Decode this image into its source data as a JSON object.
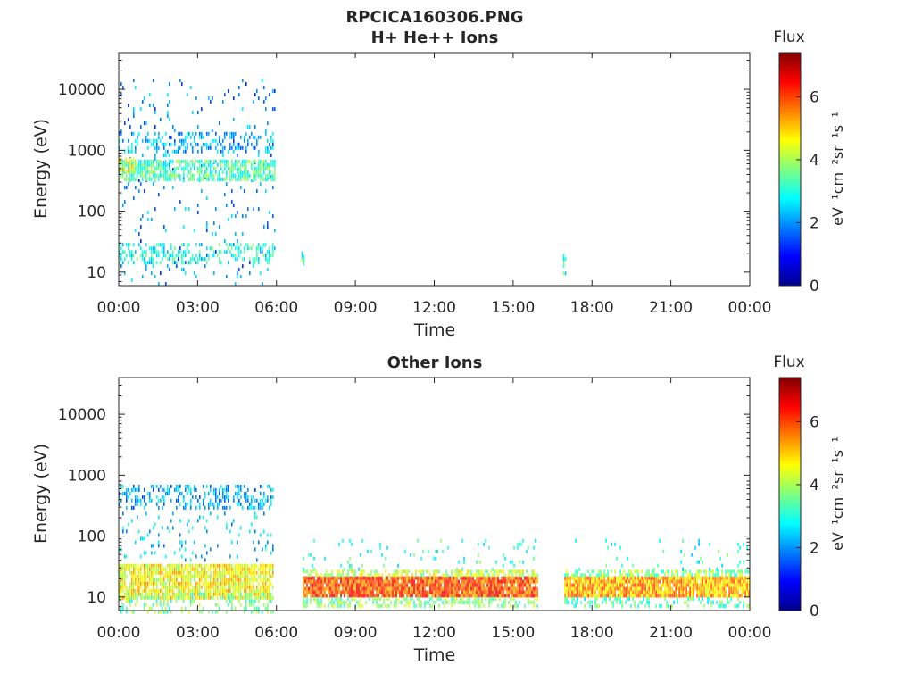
{
  "chart_data": {
    "type": "heatmap",
    "figure_title": "RPCICA160306.PNG",
    "colormap": "jet",
    "panels": [
      {
        "title": "H+ He++ Ions",
        "xlabel": "Time",
        "ylabel": "Energy (eV)",
        "x_ticks": [
          "00:00",
          "03:00",
          "06:00",
          "09:00",
          "12:00",
          "15:00",
          "18:00",
          "21:00",
          "00:00"
        ],
        "xlim_hours": [
          0,
          24
        ],
        "y_scale": "log",
        "y_ticks": [
          "10",
          "100",
          "1000",
          "10000"
        ],
        "ylim": [
          6,
          40000
        ],
        "colorbar": {
          "title": "Flux",
          "label": "eV⁻¹cm⁻²sr⁻¹s⁻¹",
          "ticks": [
            "0",
            "2",
            "4",
            "6"
          ],
          "range": [
            0,
            7.4
          ]
        },
        "regions": [
          {
            "t0": 0.0,
            "t1": 5.95,
            "e0": 6,
            "e1": 15000,
            "flux": 2.0,
            "density": 0.05
          },
          {
            "t0": 0.0,
            "t1": 5.95,
            "e0": 350,
            "e1": 700,
            "flux": 3.3,
            "density": 0.7
          },
          {
            "t0": 0.0,
            "t1": 5.95,
            "e0": 900,
            "e1": 2000,
            "flux": 2.3,
            "density": 0.28
          },
          {
            "t0": 0.0,
            "t1": 5.95,
            "e0": 15,
            "e1": 30,
            "flux": 3.0,
            "density": 0.4
          },
          {
            "t0": 0.0,
            "t1": 0.6,
            "e0": 500,
            "e1": 750,
            "flux": 4.5,
            "density": 0.6
          },
          {
            "t0": 6.95,
            "t1": 7.05,
            "e0": 14,
            "e1": 22,
            "flux": 3.2,
            "density": 0.8
          },
          {
            "t0": 16.9,
            "t1": 17.0,
            "e0": 10,
            "e1": 20,
            "flux": 3.2,
            "density": 0.8
          }
        ]
      },
      {
        "title": "Other Ions",
        "xlabel": "Time",
        "ylabel": "Energy (eV)",
        "x_ticks": [
          "00:00",
          "03:00",
          "06:00",
          "09:00",
          "12:00",
          "15:00",
          "18:00",
          "21:00",
          "00:00"
        ],
        "xlim_hours": [
          0,
          24
        ],
        "y_scale": "log",
        "y_ticks": [
          "10",
          "100",
          "1000",
          "10000"
        ],
        "ylim": [
          6,
          40000
        ],
        "colorbar": {
          "title": "Flux",
          "label": "eV⁻¹cm⁻²sr⁻¹s⁻¹",
          "ticks": [
            "0",
            "2",
            "4",
            "6"
          ],
          "range": [
            0,
            7.4
          ]
        },
        "regions": [
          {
            "t0": 0.0,
            "t1": 5.85,
            "e0": 10,
            "e1": 35,
            "flux": 4.6,
            "density": 0.85
          },
          {
            "t0": 0.0,
            "t1": 5.85,
            "e0": 6,
            "e1": 12,
            "flux": 3.6,
            "density": 0.3
          },
          {
            "t0": 0.0,
            "t1": 5.85,
            "e0": 300,
            "e1": 700,
            "flux": 2.2,
            "density": 0.35
          },
          {
            "t0": 0.0,
            "t1": 5.85,
            "e0": 40,
            "e1": 250,
            "flux": 2.5,
            "density": 0.08
          },
          {
            "t0": 7.0,
            "t1": 15.9,
            "e0": 10,
            "e1": 22,
            "flux": 5.9,
            "density": 0.95
          },
          {
            "t0": 7.0,
            "t1": 15.9,
            "e0": 22,
            "e1": 28,
            "flux": 4.2,
            "density": 0.6
          },
          {
            "t0": 7.0,
            "t1": 15.9,
            "e0": 7,
            "e1": 10,
            "flux": 3.8,
            "density": 0.5
          },
          {
            "t0": 7.0,
            "t1": 15.9,
            "e0": 30,
            "e1": 90,
            "flux": 3.2,
            "density": 0.07
          },
          {
            "t0": 16.95,
            "t1": 24.0,
            "e0": 10,
            "e1": 22,
            "flux": 5.2,
            "density": 0.95
          },
          {
            "t0": 16.95,
            "t1": 24.0,
            "e0": 22,
            "e1": 28,
            "flux": 3.8,
            "density": 0.55
          },
          {
            "t0": 16.95,
            "t1": 24.0,
            "e0": 7,
            "e1": 10,
            "flux": 3.3,
            "density": 0.4
          },
          {
            "t0": 16.95,
            "t1": 24.0,
            "e0": 30,
            "e1": 90,
            "flux": 3.0,
            "density": 0.04
          }
        ]
      }
    ]
  }
}
